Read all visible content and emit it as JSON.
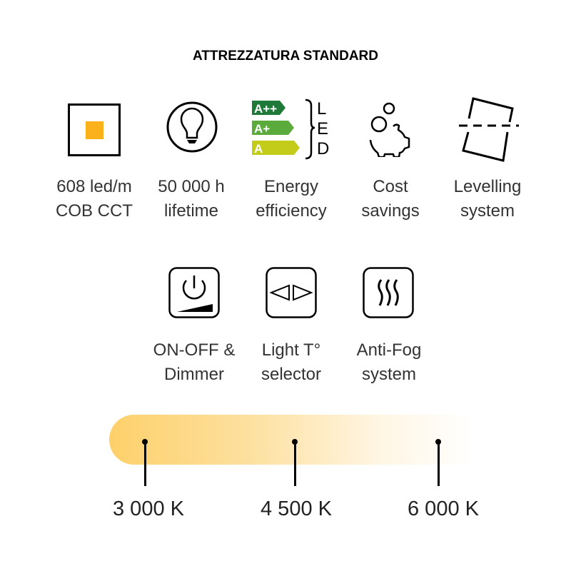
{
  "title": "ATTREZZATURA STANDARD",
  "features_row1": [
    {
      "icon": "led-square-icon",
      "line1": "608 led/m",
      "line2": "COB CCT"
    },
    {
      "icon": "lightbulb-icon",
      "line1": "50 000 h",
      "line2": "lifetime"
    },
    {
      "icon": "energy-label-icon",
      "line1": "Energy",
      "line2": "efficiency"
    },
    {
      "icon": "piggy-bank-icon",
      "line1": "Cost",
      "line2": "savings"
    },
    {
      "icon": "levelling-icon",
      "line1": "Levelling",
      "line2": "system"
    }
  ],
  "energy_label": {
    "classes": [
      "A++",
      "A+",
      "A"
    ],
    "letters": [
      "L",
      "E",
      "D"
    ],
    "colors": [
      "#1f7a3a",
      "#5aaa3c",
      "#c4cc1a"
    ]
  },
  "features_row2": [
    {
      "icon": "power-dimmer-icon",
      "line1": "ON-OFF &",
      "line2": "Dimmer"
    },
    {
      "icon": "temperature-selector-icon",
      "line1": "Light T°",
      "line2": "selector"
    },
    {
      "icon": "anti-fog-icon",
      "line1": "Anti-Fog",
      "line2": "system"
    }
  ],
  "color_temperature": {
    "gradient_colors": [
      "#fdd06a",
      "#ffffff"
    ],
    "markers": [
      {
        "value": 3000,
        "label": "3 000 K"
      },
      {
        "value": 4500,
        "label": "4 500 K"
      },
      {
        "value": 6000,
        "label": "6 000 K"
      }
    ]
  }
}
